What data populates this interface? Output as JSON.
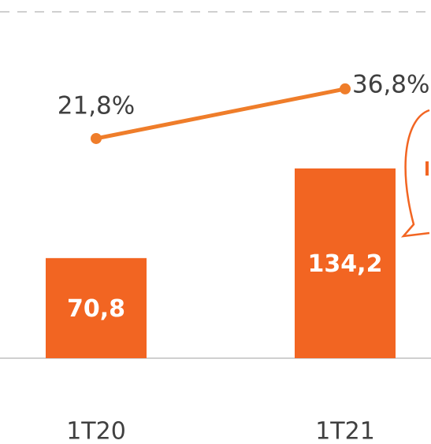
{
  "chart_data": {
    "type": "bar",
    "categories": [
      "1T20",
      "1T21"
    ],
    "series": [
      {
        "color": "#f26522",
        "values": [
          70.8,
          134.2
        ],
        "value_labels": [
          "70,8",
          "134,2"
        ]
      },
      {
        "type": "line",
        "axis": "y2",
        "color": "#ef7d2a",
        "values": [
          21.8,
          36.8
        ],
        "value_labels": [
          "21,8%",
          "36,8%"
        ]
      }
    ],
    "ylim": [
      0,
      245
    ],
    "y2lim": [
      -44.6,
      60.1
    ]
  }
}
